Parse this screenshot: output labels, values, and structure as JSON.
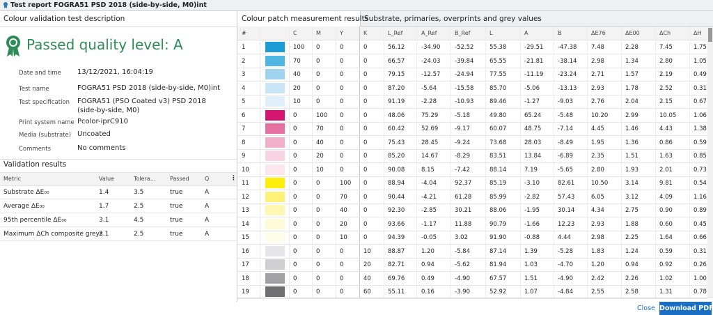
{
  "window": {
    "title": "Test report FOGRA51 PSD 2018 (side-by-side, M0)int"
  },
  "description": {
    "heading": "Colour validation test description",
    "status": "Passed quality level: A",
    "fields": [
      {
        "label": "Date and time",
        "value": "13/12/2021, 16:04:19"
      },
      {
        "label": "Test name",
        "value": "FOGRA51 PSD 2018 (side-by-side, M0)int"
      },
      {
        "label": "Test specification",
        "value": "FOGRA51 (PSO Coated v3) PSD 2018 (side-by-side, M0)"
      },
      {
        "label": "Print system name",
        "value": "Pcolor-iprC910"
      },
      {
        "label": "Media (substrate)",
        "value": "Uncoated"
      },
      {
        "label": "Comments",
        "value": "No comments"
      }
    ]
  },
  "validation": {
    "heading": "Validation results",
    "columns": [
      "Metric",
      "Value",
      "Tolera...",
      "Passed",
      "Q"
    ],
    "rows": [
      [
        "Substrate ΔE₀₀",
        "1.4",
        "3.5",
        "true",
        "A"
      ],
      [
        "Average ΔE₀₀",
        "1.7",
        "2.5",
        "true",
        "A"
      ],
      [
        "95th percentile ΔE₀₀",
        "3.1",
        "4.5",
        "true",
        "A"
      ],
      [
        "Maximum ΔCh composite greys",
        "2.1",
        "2.5",
        "true",
        "A"
      ]
    ]
  },
  "measurements": {
    "tabs": [
      "Colour patch measurement results",
      "Substrate, primaries, overprints and grey values"
    ],
    "columns": [
      "#",
      "C",
      "M",
      "Y",
      "K",
      "L_Ref",
      "A_Ref",
      "B_Ref",
      "L",
      "A",
      "B",
      "ΔE76",
      "ΔE00",
      "ΔCh",
      "ΔH"
    ],
    "rows": [
      {
        "swatch": "#1e9cd7",
        "cells": [
          "1",
          "100",
          "0",
          "0",
          "0",
          "56.12",
          "-34.90",
          "-52.52",
          "55.38",
          "-29.51",
          "-47.38",
          "7.48",
          "2.28",
          "7.45",
          "1.75"
        ]
      },
      {
        "swatch": "#4fb6e3",
        "cells": [
          "2",
          "70",
          "0",
          "0",
          "0",
          "66.57",
          "-24.03",
          "-39.84",
          "65.55",
          "-21.81",
          "-38.14",
          "2.98",
          "1.34",
          "2.80",
          "1.05"
        ]
      },
      {
        "swatch": "#9fd3ef",
        "cells": [
          "3",
          "40",
          "0",
          "0",
          "0",
          "79.15",
          "-12.57",
          "-24.94",
          "77.55",
          "-11.19",
          "-23.24",
          "2.71",
          "1.57",
          "2.19",
          "0.49"
        ]
      },
      {
        "swatch": "#cae6f6",
        "cells": [
          "4",
          "20",
          "0",
          "0",
          "0",
          "87.20",
          "-5.64",
          "-15.58",
          "85.70",
          "-5.06",
          "-13.13",
          "2.93",
          "1.78",
          "2.52",
          "0.31"
        ]
      },
      {
        "swatch": "#e0f0fa",
        "cells": [
          "5",
          "10",
          "0",
          "0",
          "0",
          "91.19",
          "-2.28",
          "-10.93",
          "89.46",
          "-1.27",
          "-9.03",
          "2.76",
          "2.04",
          "2.15",
          "0.67"
        ]
      },
      {
        "swatch": "#d4166f",
        "cells": [
          "6",
          "0",
          "100",
          "0",
          "0",
          "48.06",
          "75.29",
          "-5.18",
          "49.80",
          "65.24",
          "-5.48",
          "10.20",
          "2.99",
          "10.05",
          "1.06"
        ]
      },
      {
        "swatch": "#e670a2",
        "cells": [
          "7",
          "0",
          "70",
          "0",
          "0",
          "60.42",
          "52.69",
          "-9.17",
          "60.07",
          "48.75",
          "-7.14",
          "4.45",
          "1.46",
          "4.43",
          "1.38"
        ]
      },
      {
        "swatch": "#f2afc8",
        "cells": [
          "8",
          "0",
          "40",
          "0",
          "0",
          "75.43",
          "28.45",
          "-9.24",
          "73.68",
          "28.03",
          "-8.49",
          "1.95",
          "1.36",
          "0.86",
          "0.59"
        ]
      },
      {
        "swatch": "#f8d3e1",
        "cells": [
          "9",
          "0",
          "20",
          "0",
          "0",
          "85.20",
          "14.67",
          "-8.29",
          "83.51",
          "13.84",
          "-6.89",
          "2.35",
          "1.51",
          "1.63",
          "0.85"
        ]
      },
      {
        "swatch": "#fbe6ee",
        "cells": [
          "10",
          "0",
          "10",
          "0",
          "0",
          "90.08",
          "8.15",
          "-7.42",
          "88.14",
          "7.19",
          "-5.65",
          "2.80",
          "1.93",
          "2.01",
          "0.73"
        ]
      },
      {
        "swatch": "#fcee0a",
        "cells": [
          "11",
          "0",
          "0",
          "100",
          "0",
          "88.94",
          "-4.04",
          "92.37",
          "85.19",
          "-3.10",
          "82.61",
          "10.50",
          "3.14",
          "9.81",
          "0.54"
        ]
      },
      {
        "swatch": "#fdf277",
        "cells": [
          "12",
          "0",
          "0",
          "70",
          "0",
          "90.44",
          "-4.21",
          "61.28",
          "85.99",
          "-2.82",
          "57.43",
          "6.05",
          "3.12",
          "4.09",
          "1.16"
        ]
      },
      {
        "swatch": "#fff8b5",
        "cells": [
          "13",
          "0",
          "0",
          "40",
          "0",
          "92.30",
          "-2.85",
          "30.21",
          "88.06",
          "-1.95",
          "30.14",
          "4.34",
          "2.75",
          "0.90",
          "0.89"
        ]
      },
      {
        "swatch": "#fffbd8",
        "cells": [
          "14",
          "0",
          "0",
          "20",
          "0",
          "93.66",
          "-1.17",
          "11.88",
          "90.79",
          "-1.66",
          "12.23",
          "2.93",
          "1.88",
          "0.60",
          "0.45"
        ]
      },
      {
        "swatch": "#fefdec",
        "cells": [
          "15",
          "0",
          "0",
          "10",
          "0",
          "94.39",
          "-0.05",
          "3.02",
          "91.90",
          "-0.88",
          "4.44",
          "2.98",
          "2.25",
          "1.64",
          "0.66"
        ]
      },
      {
        "swatch": "#e6e6e8",
        "cells": [
          "16",
          "0",
          "0",
          "0",
          "10",
          "88.87",
          "1.20",
          "-5.84",
          "87.14",
          "1.39",
          "-5.28",
          "1.83",
          "1.24",
          "0.59",
          "0.31"
        ]
      },
      {
        "swatch": "#cfcfd1",
        "cells": [
          "17",
          "0",
          "0",
          "0",
          "20",
          "82.71",
          "0.94",
          "-5.62",
          "81.94",
          "1.03",
          "-4.70",
          "1.20",
          "0.94",
          "0.92",
          "0.26"
        ]
      },
      {
        "swatch": "#a2a2a4",
        "cells": [
          "18",
          "0",
          "0",
          "0",
          "40",
          "69.76",
          "0.49",
          "-4.90",
          "67.57",
          "1.51",
          "-4.90",
          "2.42",
          "2.26",
          "1.02",
          "1.00"
        ]
      },
      {
        "swatch": "#6f6f71",
        "cells": [
          "19",
          "0",
          "0",
          "0",
          "60",
          "55.11",
          "0.16",
          "-3.90",
          "52.92",
          "1.07",
          "-4.84",
          "2.55",
          "2.58",
          "1.31",
          "0.78"
        ]
      }
    ]
  },
  "buttons": {
    "close": "Close",
    "download": "Download PDF"
  }
}
